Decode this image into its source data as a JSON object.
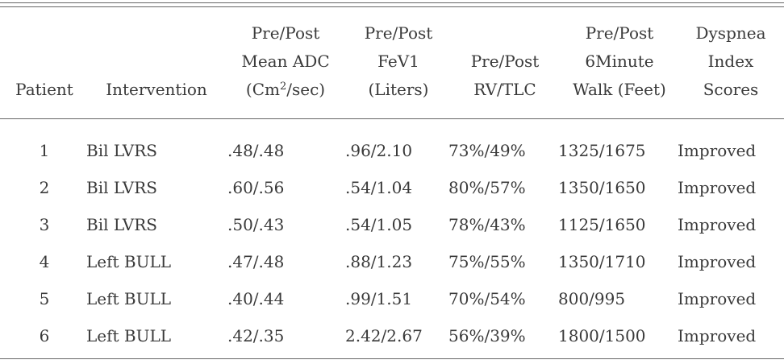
{
  "table": {
    "headers": {
      "patient": "Patient",
      "intervention": "Intervention",
      "adc_pre": "Pre/Post\nMean ADC\n(Cm",
      "adc_sup": "2",
      "adc_post": "/sec)",
      "fev1": "Pre/Post\nFeV1\n(Liters)",
      "rvtlc": "Pre/Post\nRV/TLC",
      "walk": "Pre/Post\n6Minute\nWalk (Feet)",
      "dyspnea": "Dyspnea\nIndex\nScores"
    },
    "rows": [
      {
        "patient": "1",
        "intervention": "Bil LVRS",
        "adc": ".48/.48",
        "fev1": ".96/2.10",
        "rvtlc": "73%/49%",
        "walk": "1325/1675",
        "dyspnea": "Improved"
      },
      {
        "patient": "2",
        "intervention": "Bil LVRS",
        "adc": ".60/.56",
        "fev1": ".54/1.04",
        "rvtlc": "80%/57%",
        "walk": "1350/1650",
        "dyspnea": "Improved"
      },
      {
        "patient": "3",
        "intervention": "Bil LVRS",
        "adc": ".50/.43",
        "fev1": ".54/1.05",
        "rvtlc": "78%/43%",
        "walk": "1125/1650",
        "dyspnea": "Improved"
      },
      {
        "patient": "4",
        "intervention": "Left BULL",
        "adc": ".47/.48",
        "fev1": ".88/1.23",
        "rvtlc": "75%/55%",
        "walk": "1350/1710",
        "dyspnea": "Improved"
      },
      {
        "patient": "5",
        "intervention": "Left BULL",
        "adc": ".40/.44",
        "fev1": ".99/1.51",
        "rvtlc": "70%/54%",
        "walk": "800/995",
        "dyspnea": "Improved"
      },
      {
        "patient": "6",
        "intervention": "Left BULL",
        "adc": ".42/.35",
        "fev1": "2.42/2.67",
        "rvtlc": "56%/39%",
        "walk": "1800/1500",
        "dyspnea": "Improved"
      }
    ]
  }
}
